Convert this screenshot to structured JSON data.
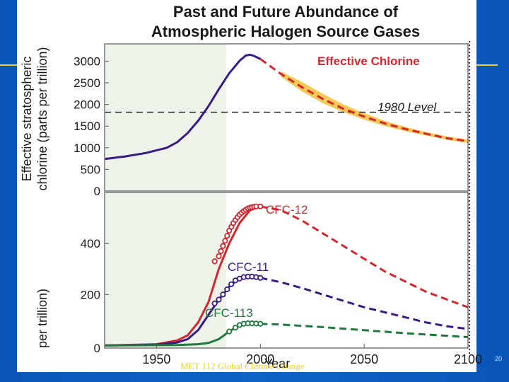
{
  "slide": {
    "footer": "MET 112 Global Climate Change",
    "page_number": "20",
    "colors": {
      "background": "#0b5bbf",
      "accent": "#e7d02a"
    }
  },
  "chart_data": [
    {
      "type": "line",
      "panel": "top",
      "title": "Past and Future Abundance of Atmospheric Halogen Source Gases",
      "title_lines": [
        "Past and Future Abundance of",
        "Atmospheric Halogen Source Gases"
      ],
      "xlabel": "Year",
      "ylabel": "Effective stratospheric chlorine (parts per trillion)",
      "ylabel_lines": [
        "Effective stratospheric",
        "chlorine (parts per trillion)"
      ],
      "xlim": [
        1925,
        2100
      ],
      "ylim": [
        0,
        3400
      ],
      "yticks": [
        0,
        500,
        1000,
        1500,
        2000,
        2500,
        3000
      ],
      "series": [
        {
          "name": "Effective Chlorine",
          "observed": {
            "color": "#3a1a86",
            "x": [
              1925,
              1935,
              1945,
              1955,
              1960,
              1965,
              1970,
              1975,
              1980,
              1985,
              1990,
              1993,
              1995,
              1997,
              2000
            ],
            "y": [
              740,
              800,
              880,
              1000,
              1130,
              1340,
              1620,
              1960,
              2350,
              2720,
              3010,
              3130,
              3150,
              3120,
              3050
            ]
          },
          "projected": {
            "color": "#d3262e",
            "x": [
              2000,
              2010,
              2020,
              2030,
              2040,
              2050,
              2060,
              2070,
              2080,
              2090,
              2100
            ],
            "y": [
              3050,
              2700,
              2400,
              2130,
              1900,
              1720,
              1560,
              1430,
              1320,
              1220,
              1150
            ]
          },
          "uncertainty_band": {
            "color": "#f1bf3a",
            "x": [
              2010,
              2020,
              2030,
              2040,
              2050,
              2060,
              2070,
              2080,
              2090,
              2100
            ],
            "upper": [
              2760,
              2520,
              2250,
              2000,
              1800,
              1620,
              1480,
              1360,
              1260,
              1190
            ],
            "lower": [
              2640,
              2300,
              2030,
              1820,
              1650,
              1500,
              1380,
              1280,
              1180,
              1110
            ]
          }
        },
        {
          "name": "1980 Level",
          "color": "#333333",
          "value": 1820
        }
      ],
      "annotations": [
        "Effective Chlorine",
        "1980 Level"
      ]
    },
    {
      "type": "line",
      "panel": "bottom",
      "xlabel": "Year",
      "ylabel": "per trillion)",
      "xlim": [
        1925,
        2100
      ],
      "ylim": [
        -10,
        600
      ],
      "xticks": [
        1950,
        2000,
        2050,
        2100
      ],
      "yticks": [
        200,
        400
      ],
      "ytick_fragments": [
        "0"
      ],
      "series": [
        {
          "name": "CFC-12",
          "color": "#d3262e",
          "observed": {
            "x": [
              1925,
              1950,
              1960,
              1965,
              1970,
              1975,
              1980,
              1985,
              1990,
              1995,
              2000
            ],
            "y": [
              0,
              5,
              20,
              40,
              90,
              170,
              300,
              400,
              480,
              530,
              545
            ]
          },
          "markers": {
            "x": [
              1978,
              1980,
              1981,
              1982,
              1983,
              1984,
              1985,
              1986,
              1987,
              1988,
              1989,
              1990,
              1991,
              1992,
              1993,
              1994,
              1995,
              1996,
              1997,
              1998,
              2000
            ],
            "y": [
              330,
              350,
              370,
              390,
              410,
              430,
              450,
              465,
              480,
              492,
              503,
              513,
              520,
              527,
              532,
              537,
              540,
              542,
              544,
              545,
              545
            ]
          },
          "projected": {
            "x": [
              2000,
              2010,
              2020,
              2030,
              2040,
              2050,
              2060,
              2070,
              2080,
              2090,
              2100
            ],
            "y": [
              545,
              530,
              490,
              440,
              390,
              340,
              290,
              250,
              210,
              180,
              150
            ]
          }
        },
        {
          "name": "CFC-11",
          "color": "#3a1a86",
          "observed": {
            "x": [
              1925,
              1950,
              1960,
              1965,
              1970,
              1975,
              1980,
              1985,
              1990,
              1995,
              2000
            ],
            "y": [
              0,
              3,
              12,
              25,
              60,
              120,
              180,
              230,
              265,
              270,
              265
            ]
          },
          "markers": {
            "x": [
              1978,
              1980,
              1982,
              1984,
              1986,
              1988,
              1990,
              1992,
              1994,
              1996,
              1998,
              2000
            ],
            "y": [
              165,
              180,
              200,
              220,
              240,
              255,
              262,
              268,
              270,
              270,
              268,
              265
            ]
          },
          "projected": {
            "x": [
              2000,
              2010,
              2020,
              2030,
              2040,
              2050,
              2060,
              2070,
              2080,
              2090,
              2100
            ],
            "y": [
              265,
              248,
              225,
              200,
              175,
              150,
              130,
              110,
              90,
              75,
              65
            ]
          }
        },
        {
          "name": "CFC-113",
          "color": "#1e7a3a",
          "observed": {
            "x": [
              1925,
              1960,
              1970,
              1975,
              1980,
              1985,
              1990,
              1995,
              2000
            ],
            "y": [
              0,
              2,
              5,
              10,
              25,
              55,
              80,
              87,
              85
            ]
          },
          "markers": {
            "x": [
              1985,
              1988,
              1990,
              1992,
              1994,
              1996,
              1998,
              2000
            ],
            "y": [
              55,
              70,
              80,
              85,
              87,
              87,
              86,
              85
            ]
          },
          "projected": {
            "x": [
              2000,
              2010,
              2020,
              2030,
              2040,
              2050,
              2060,
              2070,
              2080,
              2090,
              2100
            ],
            "y": [
              85,
              82,
              77,
              72,
              66,
              60,
              54,
              48,
              43,
              38,
              33
            ]
          }
        }
      ],
      "annotations": [
        "CFC-12",
        "CFC-11",
        "CFC-113"
      ]
    }
  ]
}
